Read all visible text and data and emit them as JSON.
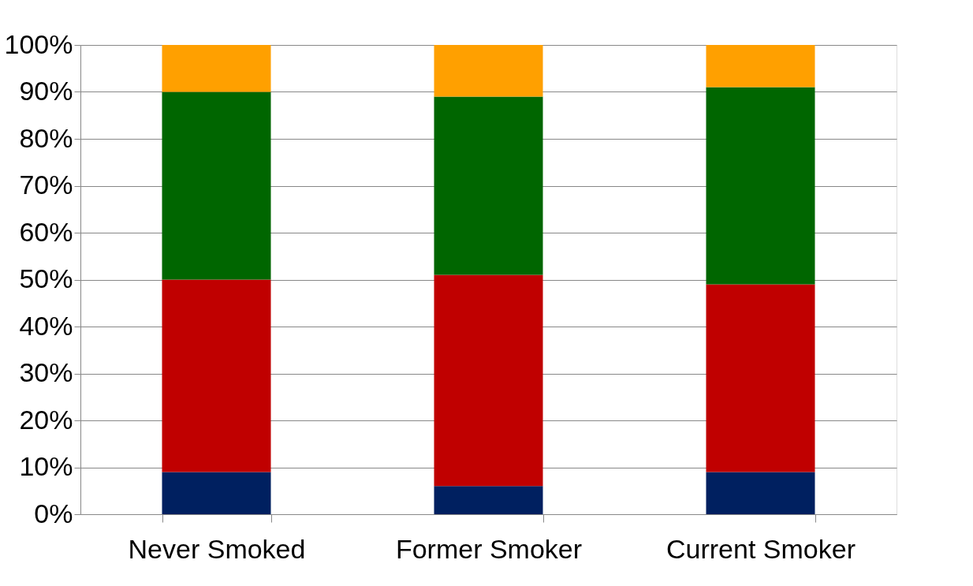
{
  "chart_data": {
    "type": "bar",
    "stacked": true,
    "categories": [
      "Never Smoked",
      "Former Smoker",
      "Current Smoker"
    ],
    "series": [
      {
        "color": "#002060",
        "values": [
          9,
          6,
          9
        ]
      },
      {
        "color": "#c00000",
        "values": [
          41,
          45,
          40
        ]
      },
      {
        "color": "#006600",
        "values": [
          40,
          38,
          42
        ]
      },
      {
        "color": "#ffa000",
        "values": [
          10,
          11,
          9
        ]
      }
    ],
    "ylim": [
      0,
      100
    ],
    "yticks": [
      {
        "value": 0,
        "label": "0%"
      },
      {
        "value": 10,
        "label": "10%"
      },
      {
        "value": 20,
        "label": "20%"
      },
      {
        "value": 30,
        "label": "30%"
      },
      {
        "value": 40,
        "label": "40%"
      },
      {
        "value": 50,
        "label": "50%"
      },
      {
        "value": 60,
        "label": "60%"
      },
      {
        "value": 70,
        "label": "70%"
      },
      {
        "value": 80,
        "label": "80%"
      },
      {
        "value": 90,
        "label": "90%"
      },
      {
        "value": 100,
        "label": "100%"
      }
    ],
    "grid": "y",
    "legend": false
  }
}
